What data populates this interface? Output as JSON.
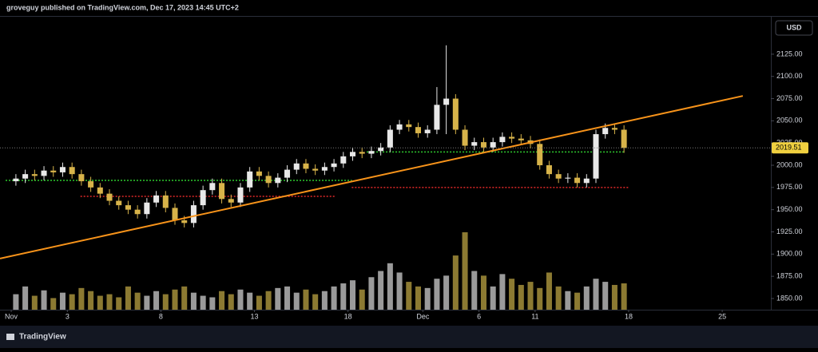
{
  "header": {
    "title": "groveguy published on TradingView.com, Dec 17, 2023 14:45 UTC+2",
    "currency": "USD",
    "brand": "TradingView"
  },
  "chart_data": {
    "type": "candlestick",
    "x": [
      0.25,
      0.75,
      1.25,
      1.75,
      2.25,
      2.75,
      3.25,
      3.75,
      4.25,
      4.75,
      5.25,
      5.75,
      6.25,
      6.75,
      7.25,
      7.75,
      8.25,
      8.75,
      9.25,
      9.75,
      10.25,
      10.75,
      11.25,
      11.75,
      12.25,
      12.75,
      13.25,
      13.75,
      14.25,
      14.75,
      15.25,
      15.75,
      16.25,
      16.75,
      17.25,
      17.75,
      18.25,
      18.75,
      19.25,
      19.75,
      20.25,
      20.75,
      21.25,
      21.75,
      22.25,
      22.75,
      23.25,
      23.75,
      24.25,
      24.75,
      25.25,
      25.75,
      26.25,
      26.75,
      27.25,
      27.75,
      28.25,
      28.75,
      29.25,
      29.75,
      30.25,
      30.75,
      31.25,
      31.75,
      32.25,
      32.75
    ],
    "open": [
      1982,
      1985,
      1990,
      1988,
      1994,
      1992,
      1998,
      1990,
      1982,
      1975,
      1968,
      1960,
      1955,
      1950,
      1945,
      1958,
      1966,
      1952,
      1938,
      1935,
      1955,
      1972,
      1980,
      1962,
      1958,
      1975,
      1993,
      1988,
      1980,
      1986,
      1995,
      2002,
      1996,
      1994,
      1998,
      2002,
      2010,
      2015,
      2013,
      2016,
      2020,
      2040,
      2046,
      2043,
      2036,
      2040,
      2068,
      2075,
      2040,
      2022,
      2026,
      2020,
      2026,
      2032,
      2030,
      2028,
      2024,
      2000,
      1990,
      1985,
      1986,
      1980,
      1985,
      2035,
      2042,
      2040
    ],
    "high": [
      1990,
      1995,
      1995,
      1999,
      1999,
      2003,
      2003,
      1995,
      1987,
      1980,
      1973,
      1965,
      1960,
      1955,
      1963,
      1971,
      1971,
      1957,
      1943,
      1960,
      1977,
      1985,
      1985,
      1967,
      1980,
      1998,
      1998,
      1993,
      1991,
      2000,
      2007,
      2007,
      2001,
      2003,
      2007,
      2015,
      2020,
      2020,
      2021,
      2025,
      2045,
      2051,
      2051,
      2048,
      2045,
      2088,
      2135,
      2080,
      2045,
      2031,
      2031,
      2031,
      2037,
      2037,
      2035,
      2033,
      2029,
      2005,
      1995,
      1991,
      1991,
      1990,
      2040,
      2047,
      2047,
      2045
    ],
    "low": [
      1977,
      1980,
      1983,
      1983,
      1987,
      1987,
      1985,
      1977,
      1970,
      1963,
      1955,
      1950,
      1945,
      1940,
      1940,
      1953,
      1947,
      1933,
      1930,
      1930,
      1950,
      1967,
      1957,
      1953,
      1953,
      1970,
      1983,
      1975,
      1975,
      1981,
      1990,
      1991,
      1989,
      1989,
      1993,
      1997,
      2005,
      2008,
      2008,
      2011,
      2015,
      2035,
      2038,
      2031,
      2031,
      2035,
      2035,
      2035,
      2017,
      2017,
      2015,
      2015,
      2021,
      2025,
      2023,
      2019,
      1995,
      1985,
      1980,
      1980,
      1975,
      1975,
      1980,
      2030,
      2035,
      2014
    ],
    "close": [
      1985,
      1990,
      1988,
      1994,
      1992,
      1998,
      1990,
      1982,
      1975,
      1968,
      1960,
      1955,
      1950,
      1945,
      1958,
      1966,
      1952,
      1938,
      1935,
      1955,
      1972,
      1980,
      1962,
      1958,
      1975,
      1993,
      1988,
      1980,
      1986,
      1995,
      2002,
      1996,
      1994,
      1998,
      2002,
      2010,
      2015,
      2013,
      2016,
      2020,
      2040,
      2046,
      2043,
      2036,
      2040,
      2068,
      2075,
      2040,
      2022,
      2026,
      2020,
      2026,
      2032,
      2030,
      2028,
      2024,
      2000,
      1990,
      1985,
      1986,
      1980,
      1985,
      2035,
      2042,
      2040,
      2019.51
    ],
    "volume": [
      20,
      30,
      18,
      25,
      15,
      22,
      20,
      28,
      24,
      18,
      20,
      16,
      30,
      22,
      18,
      24,
      20,
      26,
      30,
      22,
      18,
      16,
      24,
      20,
      26,
      22,
      18,
      24,
      28,
      30,
      22,
      26,
      20,
      24,
      30,
      34,
      38,
      26,
      42,
      50,
      60,
      48,
      36,
      30,
      28,
      40,
      44,
      70,
      100,
      50,
      44,
      30,
      46,
      40,
      32,
      36,
      28,
      48,
      30,
      24,
      22,
      30,
      40,
      36,
      32,
      34
    ],
    "volume_axis": "y2",
    "up_color": "#e8e8e8",
    "down_color": "#d7b34a",
    "volume_up_color": "#9a9a9a",
    "volume_down_color": "#8c7a32",
    "xlim": [
      -0.6,
      40.6
    ],
    "ylim": [
      1837.4,
      2186
    ],
    "y2lim": [
      0,
      400
    ],
    "xticks": [
      {
        "value": 0,
        "label": "Nov"
      },
      3,
      8,
      13,
      18,
      {
        "value": 22,
        "label": "Dec"
      },
      {
        "value": 25,
        "label": "6"
      },
      {
        "value": 28,
        "label": "11"
      },
      {
        "value": 33,
        "label": "18"
      },
      {
        "value": 38,
        "label": "25"
      }
    ],
    "yticks": [
      {
        "value": 1850,
        "label": "1850.00"
      },
      {
        "value": 1875,
        "label": "1875.00"
      },
      {
        "value": 1900,
        "label": "1900.00"
      },
      {
        "value": 1925,
        "label": "1925.00"
      },
      {
        "value": 1950,
        "label": "1950.00"
      },
      {
        "value": 1975,
        "label": "1975.00"
      },
      {
        "value": 2000,
        "label": "2000.00"
      },
      {
        "value": 2025,
        "label": "2025.00"
      },
      {
        "value": 2050,
        "label": "2050.00"
      },
      {
        "value": 2075,
        "label": "2075.00"
      },
      {
        "value": 2100,
        "label": "2100.00"
      },
      {
        "value": 2125,
        "label": "2125.00"
      }
    ],
    "trendline": {
      "color": "#f7931a",
      "x": [
        -0.6,
        39.1
      ],
      "y": [
        1895,
        2078
      ]
    },
    "levels": [
      {
        "color": "#2ecc2e",
        "value": 1983,
        "x": [
          -0.3,
          18.2
        ]
      },
      {
        "color": "#e02828",
        "value": 1965,
        "x": [
          3.7,
          17.3
        ]
      },
      {
        "color": "#2ecc2e",
        "value": 2015,
        "x": [
          19,
          32.8
        ]
      },
      {
        "color": "#e02828",
        "value": 1975,
        "x": [
          18.2,
          33
        ]
      }
    ]
  }
}
